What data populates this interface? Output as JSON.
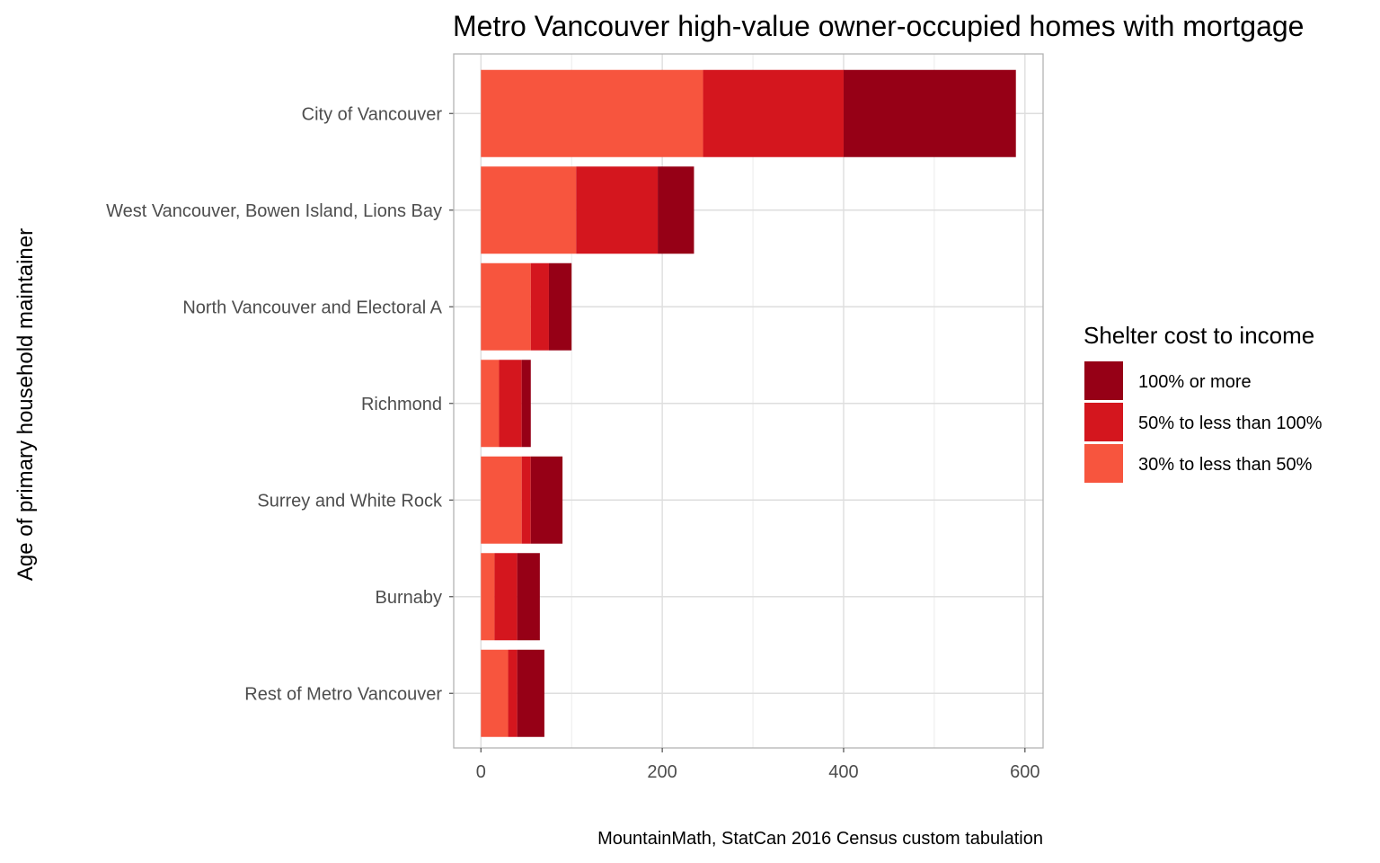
{
  "chart_data": {
    "type": "bar",
    "orientation": "horizontal",
    "stacked": true,
    "title": "Metro Vancouver high-value owner-occupied homes with mortgage",
    "xlabel": "",
    "ylabel": "Age of primary household maintainer",
    "caption": "MountainMath, StatCan 2016 Census custom tabulation",
    "categories": [
      "City of Vancouver",
      "West Vancouver, Bowen Island, Lions Bay",
      "North Vancouver and Electoral A",
      "Richmond",
      "Surrey and White Rock",
      "Burnaby",
      "Rest of Metro Vancouver"
    ],
    "series": [
      {
        "name": "30% to less than 50%",
        "color": "#f7553e",
        "values": [
          245,
          105,
          55,
          20,
          45,
          15,
          30
        ]
      },
      {
        "name": "50% to less than 100%",
        "color": "#d4161e",
        "values": [
          155,
          90,
          20,
          25,
          10,
          25,
          10
        ]
      },
      {
        "name": "100% or more",
        "color": "#960016",
        "values": [
          190,
          40,
          25,
          10,
          35,
          25,
          30
        ]
      }
    ],
    "xlim": [
      -30,
      620
    ],
    "xticks": [
      0,
      200,
      400,
      600
    ],
    "xticks_minor": [
      100,
      300,
      500
    ],
    "grid": true,
    "legend": {
      "title": "Shelter cost to income",
      "position": "right",
      "order": [
        "100% or more",
        "50% to less than 100%",
        "30% to less than 50%"
      ]
    }
  }
}
